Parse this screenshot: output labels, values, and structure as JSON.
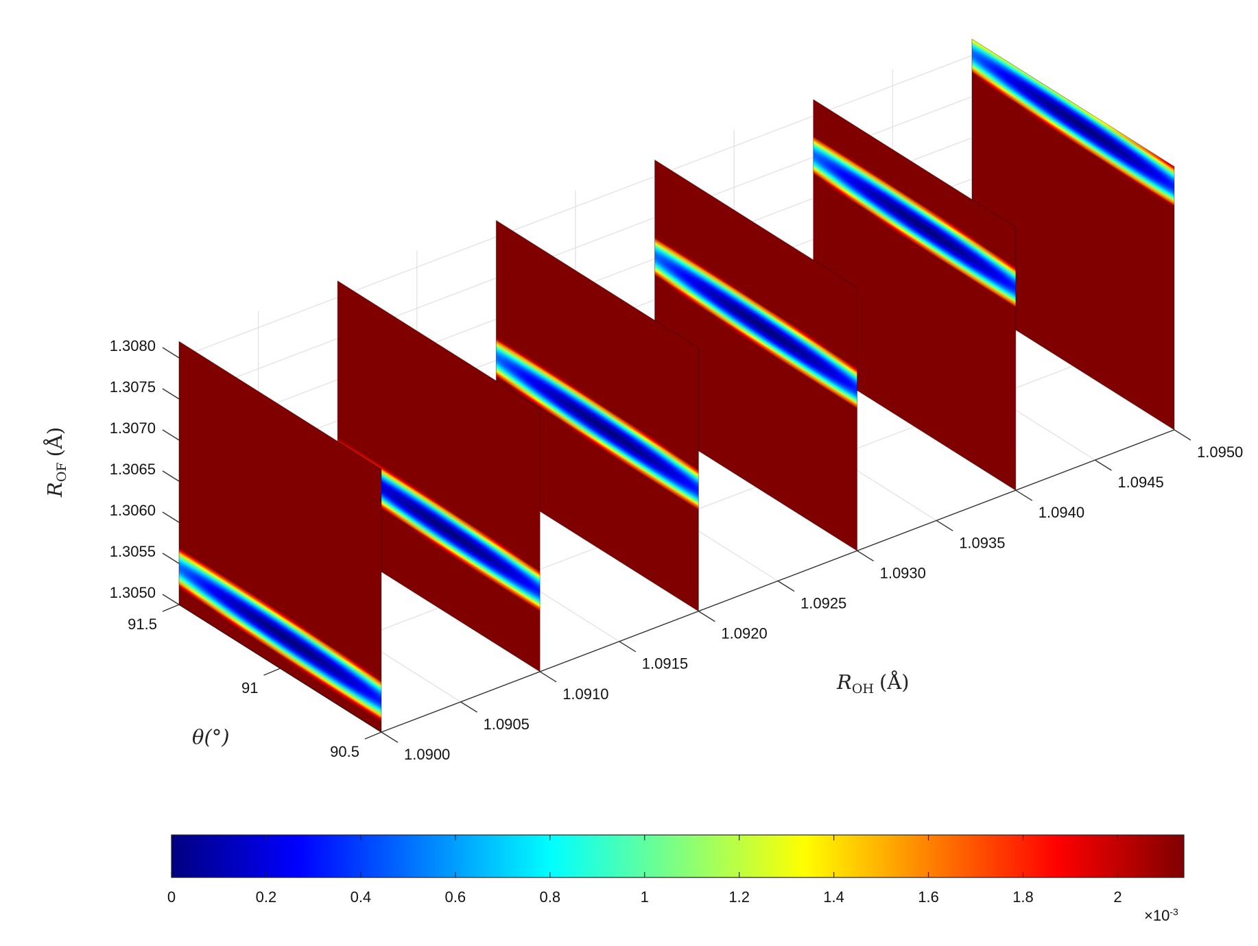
{
  "chart_data": {
    "type": "heatmap",
    "title": "",
    "plot_style": "3-D slice plot: vertical colored slices placed along the R_OH axis",
    "axes": {
      "x": {
        "label_main": "R",
        "label_sub": "OH",
        "label_unit": "(Å)",
        "ticks": [
          "1.0900",
          "1.0905",
          "1.0910",
          "1.0915",
          "1.0920",
          "1.0925",
          "1.0930",
          "1.0935",
          "1.0940",
          "1.0945",
          "1.0950"
        ],
        "range": [
          1.09,
          1.095
        ]
      },
      "y": {
        "label_main": "θ(°)",
        "ticks": [
          "90.5",
          "91",
          "91.5"
        ],
        "range": [
          90.5,
          91.5
        ]
      },
      "z": {
        "label_main": "R",
        "label_sub": "OF",
        "label_unit": "(Å)",
        "ticks": [
          "1.3050",
          "1.3055",
          "1.3060",
          "1.3065",
          "1.3070",
          "1.3075",
          "1.3080"
        ],
        "range": [
          1.305,
          1.3082
        ]
      },
      "grid": true
    },
    "slices": [
      {
        "r_oh": 1.09,
        "min_center_theta": 90.95,
        "min_center_r_of": 1.3054
      },
      {
        "r_oh": 1.091,
        "min_center_theta": 90.95,
        "min_center_r_of": 1.306
      },
      {
        "r_oh": 1.092,
        "min_center_theta": 90.95,
        "min_center_r_of": 1.3065
      },
      {
        "r_oh": 1.093,
        "min_center_theta": 90.95,
        "min_center_r_of": 1.307
      },
      {
        "r_oh": 1.094,
        "min_center_theta": 90.95,
        "min_center_r_of": 1.3075
      },
      {
        "r_oh": 1.095,
        "min_center_theta": 90.95,
        "min_center_r_of": 1.308
      }
    ],
    "colorbar": {
      "colormap": "jet",
      "range": [
        0,
        0.00214
      ],
      "ticks": [
        "0",
        "0.2",
        "0.4",
        "0.6",
        "0.8",
        "1",
        "1.2",
        "1.4",
        "1.6",
        "1.8",
        "2"
      ],
      "exponent_base": "×10",
      "exponent_power": "-3",
      "placement": "bottom"
    }
  }
}
